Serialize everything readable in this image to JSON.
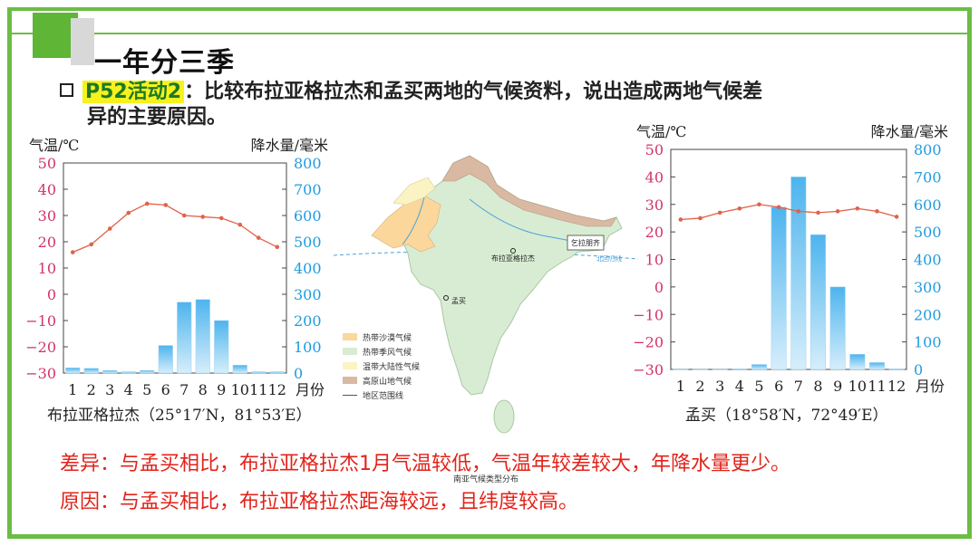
{
  "slide_title": "一年分三季",
  "task": {
    "tag": "P52活动2",
    "text_line1": "：比较布拉亚格拉杰和孟买两地的气候资料，说出造成两地气候差",
    "text_line2": "异的主要原因。"
  },
  "charts": [
    {
      "caption": "布拉亚格拉杰（25°17′N，81°53′E）",
      "left_unit": "气温/℃",
      "right_unit": "降水量/毫米",
      "x_unit": "月份"
    },
    {
      "caption": "孟买（18°58′N，72°49′E）",
      "left_unit": "气温/℃",
      "right_unit": "降水量/毫米",
      "x_unit": "月份"
    }
  ],
  "chart_data": [
    {
      "type": "bar+line",
      "categories": [
        "1",
        "2",
        "3",
        "4",
        "5",
        "6",
        "7",
        "8",
        "9",
        "10",
        "11",
        "12"
      ],
      "series": [
        {
          "values": [
            16,
            19,
            25,
            31,
            34.5,
            34,
            30,
            29.5,
            29,
            26.5,
            21.5,
            18
          ],
          "axis": "left",
          "kind": "line"
        },
        {
          "values": [
            20,
            18,
            10,
            5,
            10,
            105,
            270,
            280,
            200,
            30,
            5,
            5
          ],
          "axis": "right",
          "kind": "bar"
        }
      ],
      "ylim_left": [
        -30,
        50
      ],
      "ylim_right": [
        0,
        800
      ],
      "left_ticks": [
        "50",
        "40",
        "30",
        "20",
        "10",
        "0",
        "-10",
        "-20",
        "-30"
      ],
      "right_ticks": [
        "800",
        "700",
        "600",
        "500",
        "400",
        "300",
        "200",
        "100",
        "0"
      ],
      "xlabel": "月份",
      "ylabel_left": "气温/℃",
      "ylabel_right": "降水量/毫米"
    },
    {
      "type": "bar+line",
      "categories": [
        "1",
        "2",
        "3",
        "4",
        "5",
        "6",
        "7",
        "8",
        "9",
        "10",
        "11",
        "12"
      ],
      "series": [
        {
          "values": [
            24.5,
            25,
            27,
            28.5,
            30,
            29,
            27.5,
            27,
            27.5,
            28.5,
            27.5,
            25.5
          ],
          "axis": "left",
          "kind": "line"
        },
        {
          "values": [
            0,
            0,
            0,
            2,
            18,
            590,
            700,
            490,
            300,
            55,
            25,
            2
          ],
          "axis": "right",
          "kind": "bar"
        }
      ],
      "ylim_left": [
        -30,
        50
      ],
      "ylim_right": [
        0,
        800
      ],
      "left_ticks": [
        "50",
        "40",
        "30",
        "20",
        "10",
        "0",
        "-10",
        "-20",
        "-30"
      ],
      "right_ticks": [
        "800",
        "700",
        "600",
        "500",
        "400",
        "300",
        "200",
        "100",
        "0"
      ],
      "xlabel": "月份",
      "ylabel_left": "气温/℃",
      "ylabel_right": "降水量/毫米"
    }
  ],
  "map": {
    "label_city1": "布拉亚格拉杰",
    "label_city2": "孟买",
    "label_box": "乞拉朋齐",
    "label_tropic": "北回归线",
    "legend": [
      {
        "label": "热带沙漠气候",
        "color": "#fbd79b"
      },
      {
        "label": "热带季风气候",
        "color": "#d8ecd3"
      },
      {
        "label": "温带大陆性气候",
        "color": "#fbf3c3"
      },
      {
        "label": "高原山地气候",
        "color": "#d9b9a2"
      },
      {
        "label": "地区范围线"
      }
    ],
    "title": "南亚气候类型分布"
  },
  "answers": {
    "line1": "差异：与孟买相比，布拉亚格拉杰1月气温较低，气温年较差较大，年降水量更少。",
    "line2": "原因：与孟买相比，布拉亚格拉杰距海较远，且纬度较高。"
  },
  "colors": {
    "accent_green": "#6bbd45",
    "answer_red": "#e2231a",
    "temp_axis": "#d2336b",
    "precip_axis": "#1e9be0",
    "temp_line": "#e1624b",
    "highlight": "#f7f21d"
  }
}
